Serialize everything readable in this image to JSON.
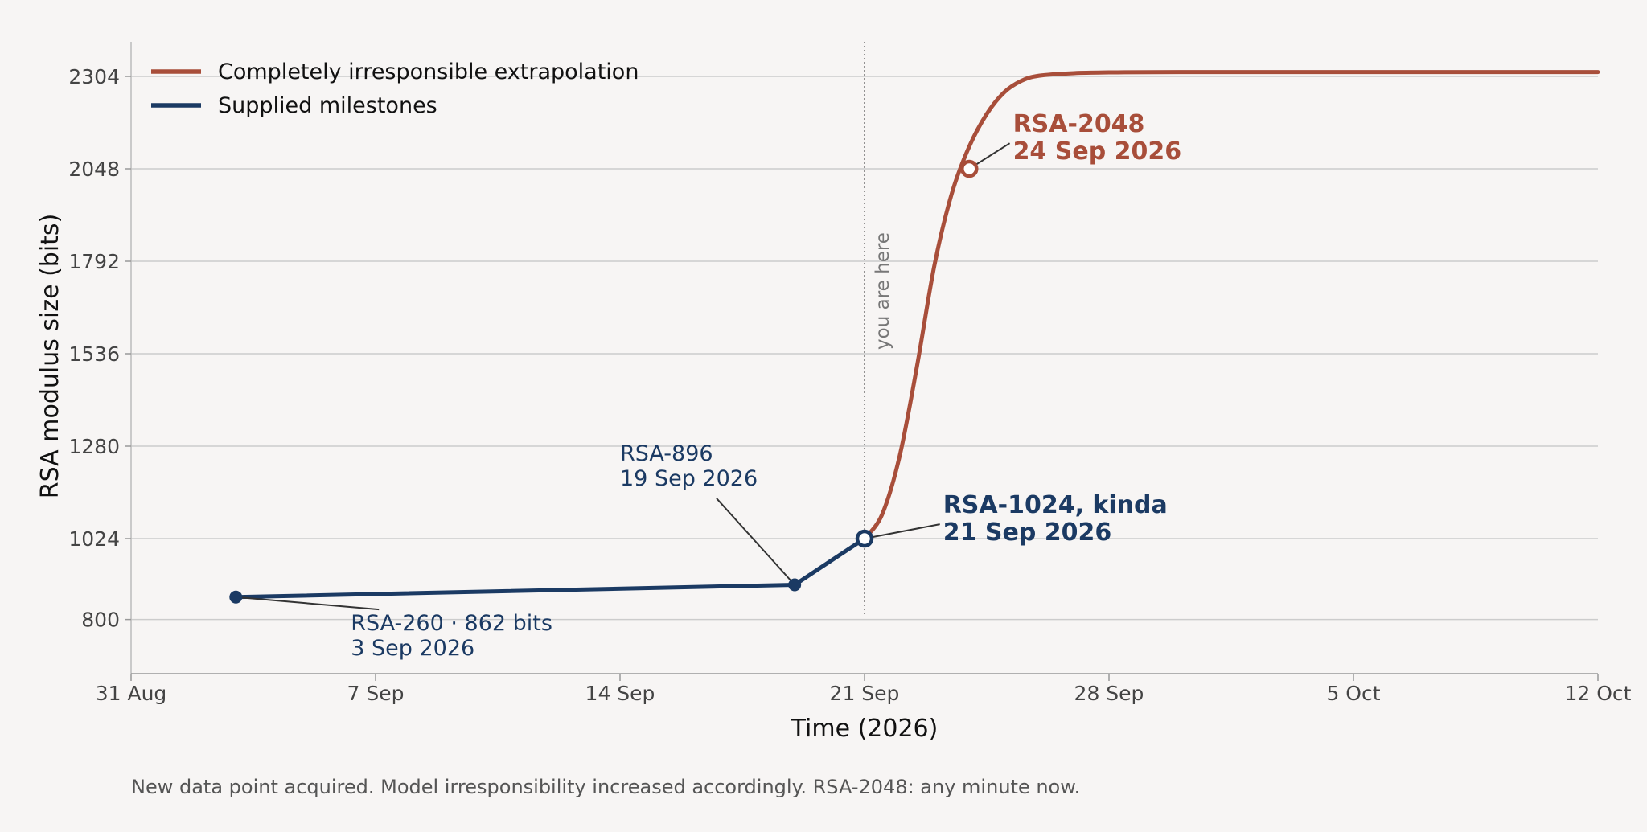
{
  "chart_data": {
    "type": "line",
    "title": "",
    "xlabel": "Time (2026)",
    "ylabel": "RSA modulus size (bits)",
    "xlim": [
      "2026-08-31",
      "2026-10-12"
    ],
    "ylim": [
      650,
      2400
    ],
    "x_ticks": [
      {
        "date": "2026-08-31",
        "label": "31 Aug"
      },
      {
        "date": "2026-09-07",
        "label": "7 Sep"
      },
      {
        "date": "2026-09-14",
        "label": "14 Sep"
      },
      {
        "date": "2026-09-21",
        "label": "21 Sep"
      },
      {
        "date": "2026-09-28",
        "label": "28 Sep"
      },
      {
        "date": "2026-10-05",
        "label": "5 Oct"
      },
      {
        "date": "2026-10-12",
        "label": "12 Oct"
      }
    ],
    "y_ticks": [
      800,
      1024,
      1280,
      1536,
      1792,
      2048,
      2304
    ],
    "grid": "horizontal",
    "legend_position": "top-left",
    "colors": {
      "extrapolation": "#a84e3a",
      "milestones": "#1b3a63",
      "background": "#f7f5f4",
      "grid": "#cccccc",
      "now_line": "#888888"
    },
    "series": [
      {
        "name": "Completely irresponsible extrapolation",
        "key": "extrapolation",
        "x": [
          "2026-09-21",
          "2026-09-21T12:00",
          "2026-09-22",
          "2026-09-22T12:00",
          "2026-09-23",
          "2026-09-23T12:00",
          "2026-09-24",
          "2026-09-24T12:00",
          "2026-09-25",
          "2026-09-25T12:00",
          "2026-09-26",
          "2026-09-27",
          "2026-09-28",
          "2026-09-30",
          "2026-10-05",
          "2026-10-12"
        ],
        "y": [
          1024,
          1090,
          1250,
          1500,
          1780,
          1980,
          2110,
          2200,
          2260,
          2292,
          2306,
          2313,
          2315,
          2316,
          2316,
          2316
        ]
      },
      {
        "name": "Supplied milestones",
        "key": "milestones",
        "x": [
          "2026-09-03",
          "2026-09-19",
          "2026-09-21"
        ],
        "y": [
          862,
          896,
          1024
        ]
      }
    ],
    "now_marker": {
      "date": "2026-09-21",
      "label": "you are here"
    },
    "annotations": [
      {
        "key": "rsa260",
        "point": {
          "x": "2026-09-03",
          "y": 862
        },
        "text_pos": {
          "x": "2026-09-06T07:00",
          "y": 770
        },
        "lines": [
          "RSA-260 · 862 bits",
          "3 Sep 2026"
        ],
        "bold": false,
        "marker": "filled",
        "color_key": "milestones"
      },
      {
        "key": "rsa896",
        "point": {
          "x": "2026-09-19",
          "y": 896
        },
        "text_pos": {
          "x": "2026-09-14",
          "y": 1240
        },
        "lines": [
          "RSA-896",
          "19 Sep 2026"
        ],
        "bold": false,
        "marker": "filled",
        "color_key": "milestones"
      },
      {
        "key": "rsa1024",
        "point": {
          "x": "2026-09-21",
          "y": 1024
        },
        "text_pos": {
          "x": "2026-09-23T06:00",
          "y": 1095
        },
        "lines": [
          "RSA-1024, kinda",
          "21 Sep 2026"
        ],
        "bold": true,
        "marker": "open",
        "color_key": "milestones"
      },
      {
        "key": "rsa2048",
        "point": {
          "x": "2026-09-24",
          "y": 2048
        },
        "text_pos": {
          "x": "2026-09-25T06:00",
          "y": 2150
        },
        "lines": [
          "RSA-2048",
          "24 Sep 2026"
        ],
        "bold": true,
        "marker": "open",
        "color_key": "extrapolation"
      }
    ]
  },
  "caption": "New data point acquired.  Model irresponsibility increased accordingly.  RSA-2048: any minute now."
}
